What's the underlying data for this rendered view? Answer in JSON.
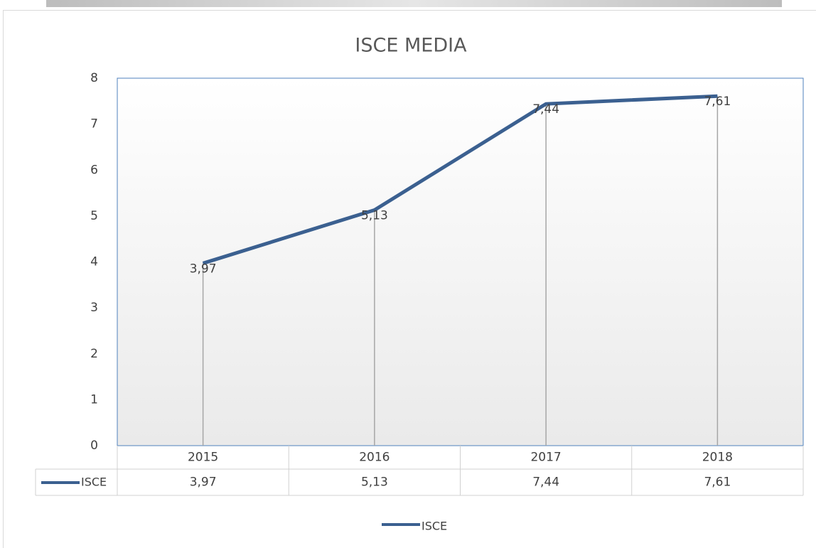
{
  "chart_data": {
    "type": "line",
    "title": "ISCE  MEDIA",
    "categories": [
      "2015",
      "2016",
      "2017",
      "2018"
    ],
    "series": [
      {
        "name": "ISCE",
        "color": "#3b6090",
        "values": [
          3.97,
          5.13,
          7.44,
          7.61
        ],
        "value_labels": [
          "3,97",
          "5,13",
          "7,44",
          "7,61"
        ]
      }
    ],
    "ylim": [
      0,
      8
    ],
    "yticks": [
      0,
      1,
      2,
      3,
      4,
      5,
      6,
      7,
      8
    ],
    "drop_lines": true,
    "data_table": true,
    "legend": "bottom"
  }
}
